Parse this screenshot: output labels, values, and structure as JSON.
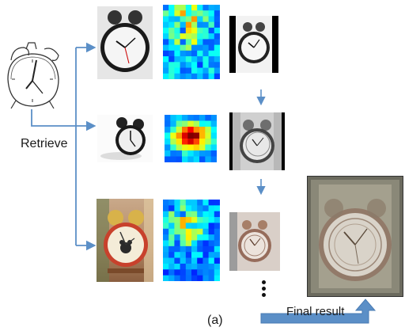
{
  "labels": {
    "retrieve": "Retrieve",
    "final_result": "Final result",
    "caption": "(a)"
  },
  "colors": {
    "arrow": "#5b8fc7",
    "heat_low": "#1d3fbf",
    "heat_high": "#d7191c"
  },
  "rows": [
    {
      "photo": "wall-style alarm clock on light gray background",
      "heatmap": "mostly blue with scattered cyan/yellow/red cells at top",
      "aligned": "aligned clock on black border"
    },
    {
      "photo": "small black twin-bell alarm clock on white",
      "heatmap": "central warm blob (yellow/red) on blue",
      "aligned": "blended aligned clock, gray"
    },
    {
      "photo": "red twin-bell alarm clock with cartoon face",
      "heatmap": "blue with cyan/yellow/red cells in upper middle",
      "aligned": "blended aligned clock, warm tone"
    }
  ]
}
